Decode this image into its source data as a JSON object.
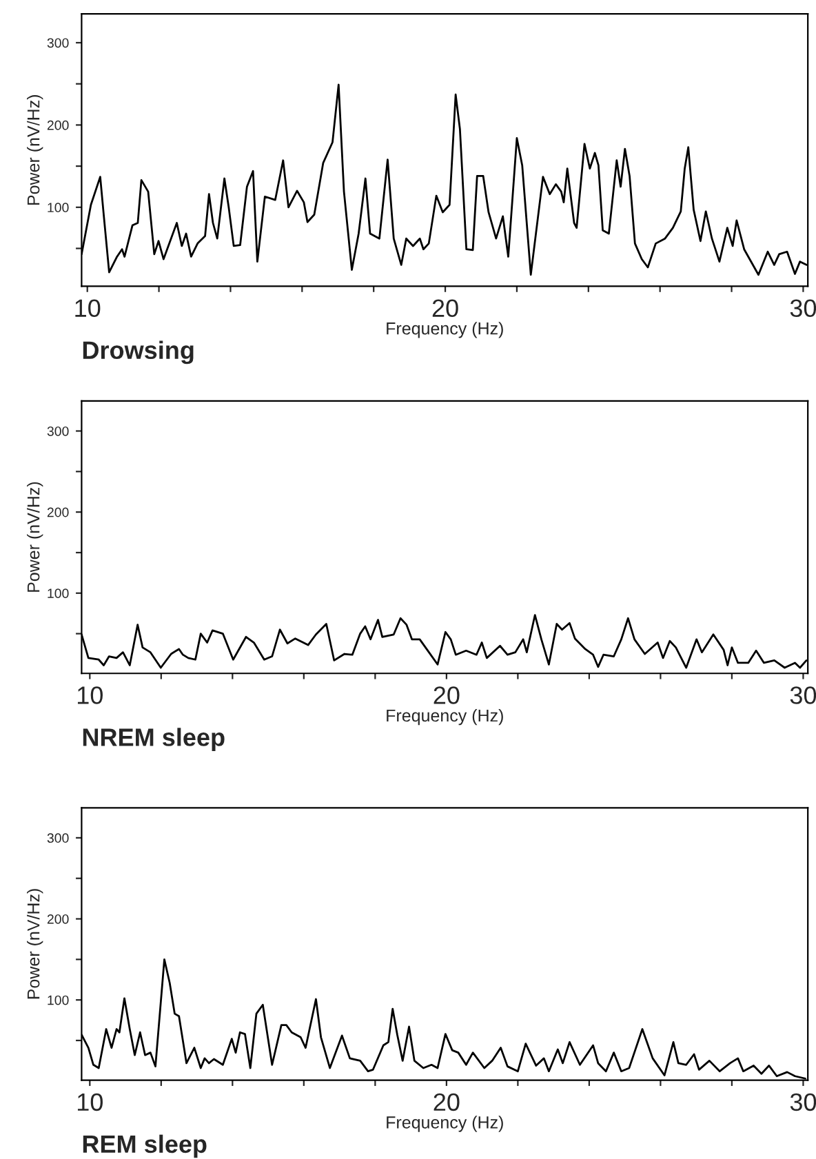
{
  "chart_data": [
    {
      "type": "line",
      "title": "Drowsing",
      "xlabel": "Frequency (Hz)",
      "ylabel": "Power (nV/Hz)",
      "xlim": [
        9.84,
        30.13
      ],
      "ylim": [
        4,
        335
      ],
      "xticks": [
        10,
        {
          "value": 12,
          "label": null
        },
        {
          "value": 14,
          "label": null
        },
        {
          "value": 16,
          "label": null
        },
        {
          "value": 18,
          "label": null
        },
        20,
        {
          "value": 22,
          "label": null
        },
        {
          "value": 24,
          "label": null
        },
        {
          "value": 26,
          "label": null
        },
        {
          "value": 28,
          "label": null
        },
        30
      ],
      "yticks": [
        {
          "value": 50,
          "label": null
        },
        100,
        {
          "value": 150,
          "label": null
        },
        200,
        {
          "value": 250,
          "label": null
        },
        300
      ],
      "x": [
        9.84,
        10.1,
        10.36,
        10.46,
        10.61,
        10.83,
        10.97,
        11.04,
        11.26,
        11.41,
        11.51,
        11.7,
        11.87,
        11.99,
        12.13,
        12.5,
        12.64,
        12.76,
        12.9,
        13.08,
        13.29,
        13.4,
        13.51,
        13.63,
        13.83,
        13.95,
        14.09,
        14.27,
        14.46,
        14.63,
        14.75,
        14.96,
        15.25,
        15.47,
        15.62,
        15.86,
        16.05,
        16.15,
        16.34,
        16.59,
        16.85,
        17.02,
        17.17,
        17.39,
        17.58,
        17.77,
        17.9,
        18.16,
        18.39,
        18.56,
        18.77,
        18.91,
        19.1,
        19.29,
        19.39,
        19.54,
        19.75,
        19.93,
        20.12,
        20.29,
        20.41,
        20.59,
        20.77,
        20.89,
        21.06,
        21.21,
        21.42,
        21.61,
        21.76,
        22.0,
        22.15,
        22.39,
        22.73,
        22.92,
        23.09,
        23.24,
        23.31,
        23.41,
        23.6,
        23.67,
        23.89,
        24.04,
        24.18,
        24.28,
        24.4,
        24.57,
        24.79,
        24.9,
        25.02,
        25.15,
        25.3,
        25.49,
        25.66,
        25.88,
        26.14,
        26.36,
        26.58,
        26.69,
        26.79,
        26.94,
        27.13,
        27.28,
        27.45,
        27.66,
        27.88,
        28.03,
        28.14,
        28.35,
        28.75,
        29.01,
        29.19,
        29.33,
        29.55,
        29.77,
        29.91,
        30.1
      ],
      "series": [
        {
          "color": "#000000",
          "values": [
            43,
            103,
            137,
            90,
            21,
            40,
            49,
            40,
            78,
            81,
            133,
            119,
            43,
            59,
            37,
            81,
            53,
            68,
            40,
            56,
            65,
            116,
            81,
            62,
            135,
            100,
            53,
            54,
            125,
            144,
            34,
            113,
            109,
            157,
            100,
            120,
            106,
            82,
            91,
            154,
            179,
            249,
            119,
            24,
            68,
            135,
            68,
            62,
            158,
            62,
            30,
            62,
            53,
            62,
            49,
            56,
            114,
            94,
            103,
            237,
            195,
            49,
            48,
            138,
            138,
            94,
            62,
            89,
            40,
            184,
            151,
            18,
            137,
            116,
            128,
            119,
            106,
            147,
            81,
            75,
            177,
            147,
            166,
            151,
            72,
            68,
            157,
            125,
            171,
            138,
            56,
            37,
            27,
            56,
            62,
            75,
            95,
            147,
            173,
            97,
            59,
            95,
            62,
            34,
            75,
            53,
            84,
            49,
            18,
            46,
            30,
            43,
            46,
            19,
            34,
            30
          ]
        }
      ]
    },
    {
      "type": "line",
      "title": "NREM sleep",
      "xlabel": "Frequency (Hz)",
      "ylabel": "Power (nV/Hz)",
      "xlim": [
        9.77,
        30.13
      ],
      "ylim": [
        1,
        337
      ],
      "xticks": [
        10,
        {
          "value": 12,
          "label": null
        },
        {
          "value": 14,
          "label": null
        },
        {
          "value": 16,
          "label": null
        },
        {
          "value": 18,
          "label": null
        },
        20,
        {
          "value": 22,
          "label": null
        },
        {
          "value": 24,
          "label": null
        },
        {
          "value": 26,
          "label": null
        },
        {
          "value": 28,
          "label": null
        },
        30
      ],
      "yticks": [
        {
          "value": 50,
          "label": null
        },
        100,
        {
          "value": 150,
          "label": null
        },
        200,
        {
          "value": 250,
          "label": null
        },
        300
      ],
      "x": [
        9.77,
        9.96,
        10.25,
        10.39,
        10.54,
        10.75,
        10.93,
        11.12,
        11.34,
        11.48,
        11.7,
        11.99,
        12.28,
        12.5,
        12.61,
        12.76,
        12.96,
        13.11,
        13.29,
        13.44,
        13.73,
        14.02,
        14.38,
        14.6,
        14.89,
        15.11,
        15.33,
        15.54,
        15.76,
        16.12,
        16.34,
        16.63,
        16.85,
        17.14,
        17.36,
        17.58,
        17.72,
        17.87,
        18.08,
        18.2,
        18.52,
        18.71,
        18.88,
        19.03,
        19.25,
        19.46,
        19.75,
        19.97,
        20.12,
        20.26,
        20.55,
        20.84,
        20.99,
        21.13,
        21.5,
        21.71,
        21.93,
        22.15,
        22.25,
        22.48,
        22.66,
        22.87,
        23.09,
        23.24,
        23.45,
        23.6,
        23.89,
        24.11,
        24.25,
        24.4,
        24.69,
        24.9,
        25.09,
        25.27,
        25.56,
        25.92,
        26.07,
        26.26,
        26.43,
        26.72,
        27.01,
        27.16,
        27.48,
        27.77,
        27.88,
        28.0,
        28.17,
        28.46,
        28.68,
        28.9,
        29.19,
        29.48,
        29.77,
        29.91,
        30.09
      ],
      "series": [
        {
          "color": "#000000",
          "values": [
            49,
            20,
            18,
            11,
            22,
            20,
            27,
            11,
            61,
            33,
            27,
            8,
            25,
            31,
            24,
            20,
            18,
            50,
            39,
            54,
            50,
            18,
            46,
            39,
            18,
            22,
            55,
            38,
            44,
            36,
            49,
            62,
            17,
            25,
            24,
            50,
            59,
            43,
            67,
            46,
            49,
            69,
            61,
            43,
            43,
            30,
            12,
            52,
            43,
            24,
            29,
            24,
            39,
            20,
            35,
            24,
            27,
            43,
            27,
            73,
            43,
            12,
            62,
            55,
            63,
            44,
            31,
            24,
            9,
            24,
            22,
            43,
            69,
            43,
            25,
            39,
            20,
            41,
            33,
            8,
            43,
            27,
            49,
            30,
            11,
            33,
            14,
            14,
            29,
            14,
            17,
            8,
            14,
            8,
            17
          ]
        }
      ]
    },
    {
      "type": "line",
      "title": "REM sleep",
      "xlabel": "Frequency (Hz)",
      "ylabel": "Power (nV/Hz)",
      "xlim": [
        9.77,
        30.13
      ],
      "ylim": [
        1,
        337
      ],
      "xticks": [
        10,
        {
          "value": 12,
          "label": null
        },
        {
          "value": 14,
          "label": null
        },
        {
          "value": 16,
          "label": null
        },
        {
          "value": 18,
          "label": null
        },
        20,
        {
          "value": 22,
          "label": null
        },
        {
          "value": 24,
          "label": null
        },
        {
          "value": 26,
          "label": null
        },
        {
          "value": 28,
          "label": null
        },
        30
      ],
      "yticks": [
        {
          "value": 50,
          "label": null
        },
        100,
        {
          "value": 150,
          "label": null
        },
        200,
        {
          "value": 250,
          "label": null
        },
        300
      ],
      "x": [
        9.77,
        9.96,
        10.1,
        10.25,
        10.46,
        10.61,
        10.75,
        10.83,
        10.97,
        11.12,
        11.26,
        11.41,
        11.55,
        11.7,
        11.84,
        12.09,
        12.24,
        12.38,
        12.5,
        12.71,
        12.93,
        13.11,
        13.22,
        13.34,
        13.48,
        13.73,
        13.98,
        14.09,
        14.21,
        14.35,
        14.5,
        14.67,
        14.85,
        15.11,
        15.37,
        15.51,
        15.66,
        15.91,
        16.05,
        16.34,
        16.48,
        16.73,
        17.07,
        17.29,
        17.58,
        17.8,
        17.94,
        18.23,
        18.37,
        18.49,
        18.62,
        18.77,
        18.95,
        19.1,
        19.35,
        19.58,
        19.75,
        19.97,
        20.16,
        20.33,
        20.55,
        20.74,
        21.06,
        21.28,
        21.52,
        21.71,
        22.0,
        22.22,
        22.51,
        22.73,
        22.87,
        23.12,
        23.26,
        23.45,
        23.74,
        24.11,
        24.25,
        24.47,
        24.69,
        24.9,
        25.12,
        25.49,
        25.78,
        26.11,
        26.36,
        26.5,
        26.72,
        26.94,
        27.08,
        27.37,
        27.66,
        27.95,
        28.17,
        28.32,
        28.61,
        28.83,
        29.04,
        29.26,
        29.55,
        29.77,
        30.06
      ],
      "series": [
        {
          "color": "#000000",
          "values": [
            57,
            41,
            20,
            16,
            64,
            41,
            64,
            60,
            102,
            64,
            32,
            60,
            32,
            35,
            18,
            150,
            121,
            83,
            80,
            22,
            41,
            16,
            28,
            22,
            27,
            20,
            52,
            35,
            60,
            58,
            16,
            83,
            94,
            20,
            69,
            69,
            60,
            54,
            41,
            101,
            54,
            16,
            56,
            28,
            25,
            12,
            14,
            44,
            48,
            89,
            57,
            25,
            67,
            25,
            16,
            20,
            16,
            58,
            38,
            35,
            20,
            35,
            16,
            25,
            41,
            18,
            12,
            46,
            19,
            28,
            12,
            39,
            22,
            48,
            20,
            44,
            22,
            12,
            35,
            12,
            16,
            64,
            28,
            7,
            48,
            22,
            20,
            33,
            14,
            25,
            12,
            22,
            28,
            12,
            19,
            9,
            19,
            6,
            11,
            6,
            3
          ]
        }
      ]
    }
  ]
}
